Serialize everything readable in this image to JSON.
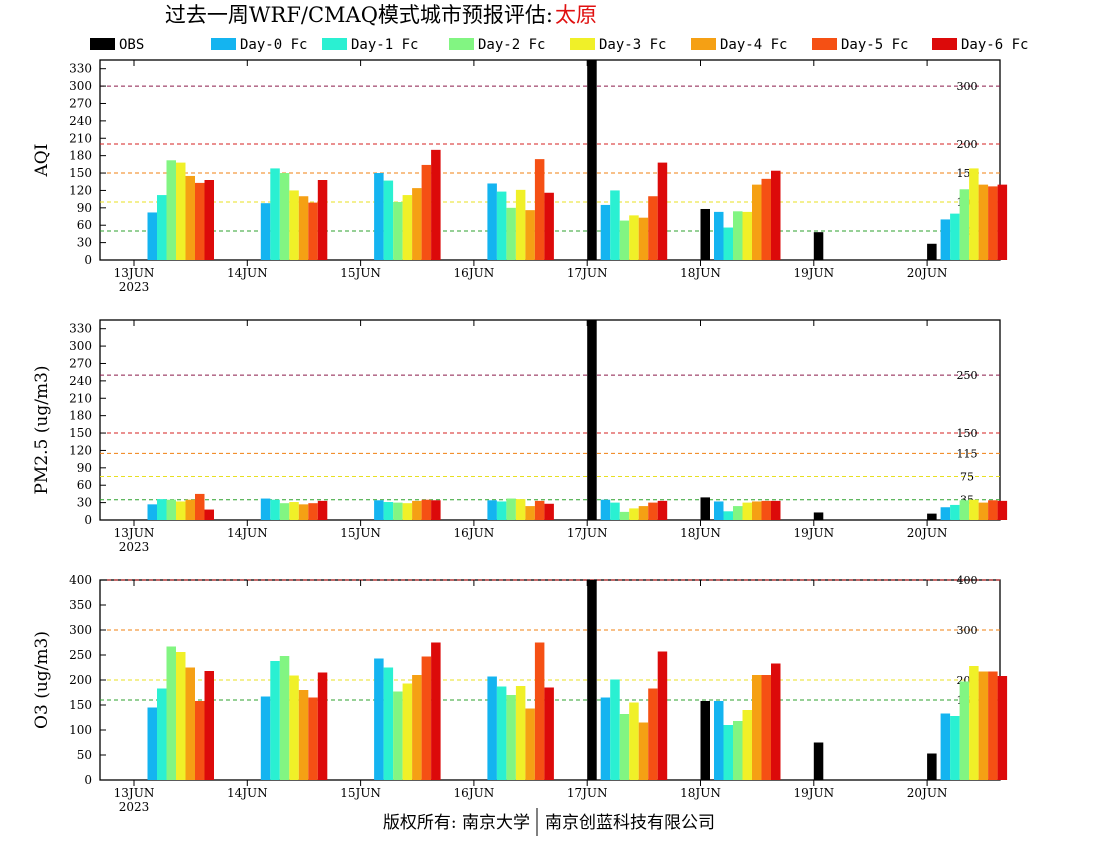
{
  "title": {
    "prefix": "过去一周WRF/CMAQ模式城市预报评估:",
    "city": "太原",
    "city_color": "#e01010"
  },
  "footer": {
    "left": "版权所有: 南京大学",
    "right": "南京创蓝科技有限公司"
  },
  "legend": [
    {
      "label": "OBS",
      "color": "#000000"
    },
    {
      "label": "Day-0 Fc",
      "color": "#14b4f0"
    },
    {
      "label": "Day-1 Fc",
      "color": "#2af0d2"
    },
    {
      "label": "Day-2 Fc",
      "color": "#82f582"
    },
    {
      "label": "Day-3 Fc",
      "color": "#f0f028"
    },
    {
      "label": "Day-4 Fc",
      "color": "#f5a014"
    },
    {
      "label": "Day-5 Fc",
      "color": "#f55014"
    },
    {
      "label": "Day-6 Fc",
      "color": "#dc0a0a"
    }
  ],
  "chart_data": [
    {
      "type": "bar",
      "ylabel": "AQI",
      "ylim": [
        0,
        345
      ],
      "yticks": [
        0,
        30,
        60,
        90,
        120,
        150,
        180,
        210,
        240,
        270,
        300,
        330
      ],
      "categories": [
        "13JUN",
        "14JUN",
        "15JUN",
        "16JUN",
        "17JUN",
        "18JUN",
        "19JUN",
        "20JUN"
      ],
      "first_category_sublabel": "2023",
      "thresholds": [
        {
          "value": 50,
          "label": "50",
          "color": "#2ca02c"
        },
        {
          "value": 100,
          "label": "100",
          "color": "#e8e020"
        },
        {
          "value": 150,
          "label": "150",
          "color": "#f08010"
        },
        {
          "value": 200,
          "label": "200",
          "color": "#d62020"
        },
        {
          "value": 300,
          "label": "300",
          "color": "#8b1a4a"
        }
      ],
      "series": [
        {
          "name": "OBS",
          "values": [
            null,
            null,
            null,
            null,
            345,
            88,
            48,
            28
          ]
        },
        {
          "name": "Day-0 Fc",
          "values": [
            82,
            98,
            150,
            132,
            95,
            83,
            null,
            70
          ]
        },
        {
          "name": "Day-1 Fc",
          "values": [
            112,
            158,
            137,
            118,
            120,
            56,
            null,
            80
          ]
        },
        {
          "name": "Day-2 Fc",
          "values": [
            172,
            150,
            100,
            90,
            68,
            84,
            null,
            122
          ]
        },
        {
          "name": "Day-3 Fc",
          "values": [
            168,
            120,
            112,
            121,
            77,
            83,
            null,
            158
          ]
        },
        {
          "name": "Day-4 Fc",
          "values": [
            145,
            110,
            124,
            86,
            73,
            130,
            null,
            130
          ]
        },
        {
          "name": "Day-5 Fc",
          "values": [
            133,
            99,
            164,
            174,
            110,
            140,
            null,
            127
          ]
        },
        {
          "name": "Day-6 Fc",
          "values": [
            138,
            138,
            190,
            116,
            168,
            154,
            null,
            130
          ]
        }
      ]
    },
    {
      "type": "bar",
      "ylabel": "PM2.5 (ug/m3)",
      "ylim": [
        0,
        345
      ],
      "yticks": [
        0,
        30,
        60,
        90,
        120,
        150,
        180,
        210,
        240,
        270,
        300,
        330
      ],
      "categories": [
        "13JUN",
        "14JUN",
        "15JUN",
        "16JUN",
        "17JUN",
        "18JUN",
        "19JUN",
        "20JUN"
      ],
      "first_category_sublabel": "2023",
      "thresholds": [
        {
          "value": 35,
          "label": "35",
          "color": "#2ca02c"
        },
        {
          "value": 75,
          "label": "75",
          "color": "#e8e020"
        },
        {
          "value": 115,
          "label": "115",
          "color": "#f08010"
        },
        {
          "value": 150,
          "label": "150",
          "color": "#d62020"
        },
        {
          "value": 250,
          "label": "250",
          "color": "#8b1a4a"
        }
      ],
      "series": [
        {
          "name": "OBS",
          "values": [
            null,
            null,
            null,
            null,
            345,
            39,
            13,
            11
          ]
        },
        {
          "name": "Day-0 Fc",
          "values": [
            27,
            37,
            34,
            34,
            35,
            32,
            null,
            22
          ]
        },
        {
          "name": "Day-1 Fc",
          "values": [
            36,
            35,
            31,
            32,
            30,
            15,
            null,
            26
          ]
        },
        {
          "name": "Day-2 Fc",
          "values": [
            35,
            29,
            30,
            37,
            14,
            24,
            null,
            34
          ]
        },
        {
          "name": "Day-3 Fc",
          "values": [
            32,
            31,
            29,
            36,
            20,
            30,
            null,
            35
          ]
        },
        {
          "name": "Day-4 Fc",
          "values": [
            35,
            27,
            33,
            24,
            24,
            32,
            null,
            30
          ]
        },
        {
          "name": "Day-5 Fc",
          "values": [
            45,
            29,
            35,
            33,
            30,
            33,
            null,
            34
          ]
        },
        {
          "name": "Day-6 Fc",
          "values": [
            18,
            33,
            34,
            28,
            33,
            33,
            null,
            33
          ]
        }
      ]
    },
    {
      "type": "bar",
      "ylabel": "O3 (ug/m3)",
      "ylim": [
        0,
        400
      ],
      "yticks": [
        0,
        50,
        100,
        150,
        200,
        250,
        300,
        350,
        400
      ],
      "categories": [
        "13JUN",
        "14JUN",
        "15JUN",
        "16JUN",
        "17JUN",
        "18JUN",
        "19JUN",
        "20JUN"
      ],
      "first_category_sublabel": "2023",
      "thresholds": [
        {
          "value": 160,
          "label": "160",
          "color": "#2ca02c"
        },
        {
          "value": 200,
          "label": "200",
          "color": "#e8e020"
        },
        {
          "value": 300,
          "label": "300",
          "color": "#f08010"
        },
        {
          "value": 400,
          "label": "400",
          "color": "#d62020"
        }
      ],
      "series": [
        {
          "name": "OBS",
          "values": [
            null,
            null,
            null,
            null,
            400,
            158,
            75,
            53
          ]
        },
        {
          "name": "Day-0 Fc",
          "values": [
            145,
            167,
            243,
            207,
            165,
            158,
            null,
            133
          ]
        },
        {
          "name": "Day-1 Fc",
          "values": [
            183,
            238,
            225,
            187,
            201,
            110,
            null,
            128
          ]
        },
        {
          "name": "Day-2 Fc",
          "values": [
            267,
            248,
            177,
            170,
            132,
            118,
            null,
            197
          ]
        },
        {
          "name": "Day-3 Fc",
          "values": [
            256,
            209,
            193,
            188,
            155,
            140,
            null,
            228
          ]
        },
        {
          "name": "Day-4 Fc",
          "values": [
            225,
            180,
            210,
            143,
            115,
            210,
            null,
            217
          ]
        },
        {
          "name": "Day-5 Fc",
          "values": [
            158,
            165,
            247,
            275,
            183,
            210,
            null,
            217
          ]
        },
        {
          "name": "Day-6 Fc",
          "values": [
            218,
            215,
            275,
            185,
            257,
            233,
            null,
            208
          ]
        }
      ]
    }
  ]
}
